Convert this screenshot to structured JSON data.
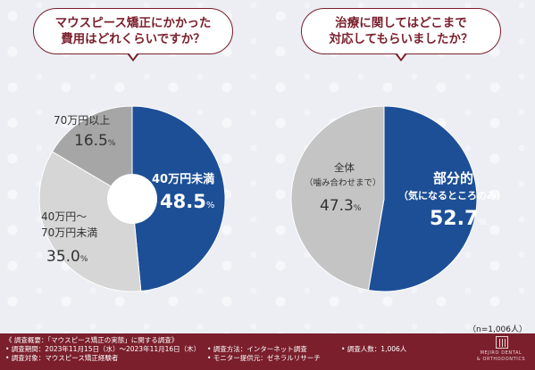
{
  "questions": {
    "left": "マウスピース矯正にかかった\n費用はどれくらいですか？",
    "right": "治療に関してはどこまで\n対応してもらいましたか？"
  },
  "chart_data": [
    {
      "type": "pie",
      "title": "マウスピース矯正にかかった費用はどれくらいですか？",
      "slices": [
        {
          "label": "40万円未満",
          "value": 48.5,
          "value_text": "48.5",
          "color": "#1d4f97"
        },
        {
          "label": "40万円〜70万円未満",
          "value": 35.0,
          "value_text": "35.0",
          "color": "#d6d6d6"
        },
        {
          "label": "70万円以上",
          "value": 16.5,
          "value_text": "16.5",
          "color": "#a6a6a6"
        }
      ],
      "donut": true
    },
    {
      "type": "pie",
      "title": "治療に関してはどこまで対応してもらいましたか？",
      "slices": [
        {
          "label": "部分的",
          "sublabel": "（気になるところのみ）",
          "value": 52.7,
          "value_text": "52.7",
          "color": "#1d4f97"
        },
        {
          "label": "全体",
          "sublabel": "（噛み合わせまで）",
          "value": 47.3,
          "value_text": "47.3",
          "color": "#c4c4c4"
        }
      ],
      "donut": false
    }
  ],
  "chart_labels": {
    "pie1_s1_line1": "40万円未満",
    "pie1_s2_line1": "40万円〜",
    "pie1_s2_line2": "70万円未満",
    "pie1_s3_line1": "70万円以上",
    "pie2_s1_line1": "部分的",
    "pie2_s1_line2": "（気になるところのみ）",
    "pie2_s2_line1": "全体",
    "pie2_s2_line2": "（噛み合わせまで）",
    "percent": "%"
  },
  "sample_note": "（n=1,006人）",
  "footer": {
    "overview": "《 調査概要：「マウスピース矯正の実態」に関する調査》",
    "period": "• 調査期間：2023年11月15日（水）〜2023年11月16日（木）",
    "target": "• 調査対象：マウスピース矯正経験者",
    "method": "• 調査方法：インターネット調査",
    "monitor": "• モニター提供元：ゼネラルリサーチ",
    "count": "• 調査人数：1,006人",
    "logo_line1": "MEJIRO DENTAL",
    "logo_line2": "& ORTHODONTICS"
  }
}
